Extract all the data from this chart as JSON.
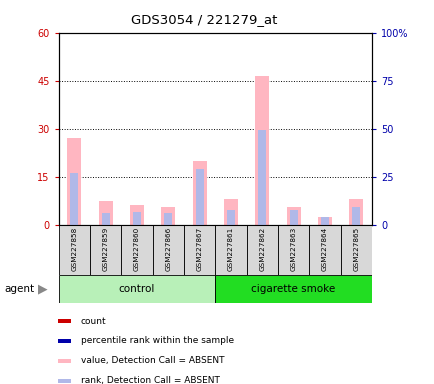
{
  "title": "GDS3054 / 221279_at",
  "samples": [
    "GSM227858",
    "GSM227859",
    "GSM227860",
    "GSM227866",
    "GSM227867",
    "GSM227861",
    "GSM227862",
    "GSM227863",
    "GSM227864",
    "GSM227865"
  ],
  "groups": [
    "control",
    "control",
    "control",
    "control",
    "control",
    "cigarette smoke",
    "cigarette smoke",
    "cigarette smoke",
    "cigarette smoke",
    "cigarette smoke"
  ],
  "value_absent": [
    27.0,
    7.5,
    6.0,
    5.5,
    20.0,
    8.0,
    46.5,
    5.5,
    2.5,
    8.0
  ],
  "rank_absent_left": [
    16.0,
    3.5,
    4.0,
    3.5,
    17.5,
    4.5,
    29.5,
    4.5,
    2.5,
    5.5
  ],
  "ylim_left": [
    0,
    60
  ],
  "ylim_right": [
    0,
    100
  ],
  "yticks_left": [
    0,
    15,
    30,
    45,
    60
  ],
  "yticks_right": [
    0,
    25,
    50,
    75,
    100
  ],
  "ytick_labels_right": [
    "0",
    "25",
    "50",
    "75",
    "100%"
  ],
  "ytick_labels_left": [
    "0",
    "15",
    "30",
    "45",
    "60"
  ],
  "color_value_absent": "#ffb6c1",
  "color_rank_absent": "#b0b8e8",
  "color_count": "#cc0000",
  "color_percentile": "#0000aa",
  "legend_items": [
    {
      "label": "count",
      "color": "#cc0000"
    },
    {
      "label": "percentile rank within the sample",
      "color": "#0000aa"
    },
    {
      "label": "value, Detection Call = ABSENT",
      "color": "#ffb6c1"
    },
    {
      "label": "rank, Detection Call = ABSENT",
      "color": "#b0b8e8"
    }
  ],
  "agent_label": "agent",
  "tick_color_left": "#cc0000",
  "tick_color_right": "#0000aa",
  "ctrl_color_light": "#b8f0b8",
  "ctrl_color_dark": "#44dd44",
  "smoke_color": "#22dd22",
  "bar_width": 0.25
}
